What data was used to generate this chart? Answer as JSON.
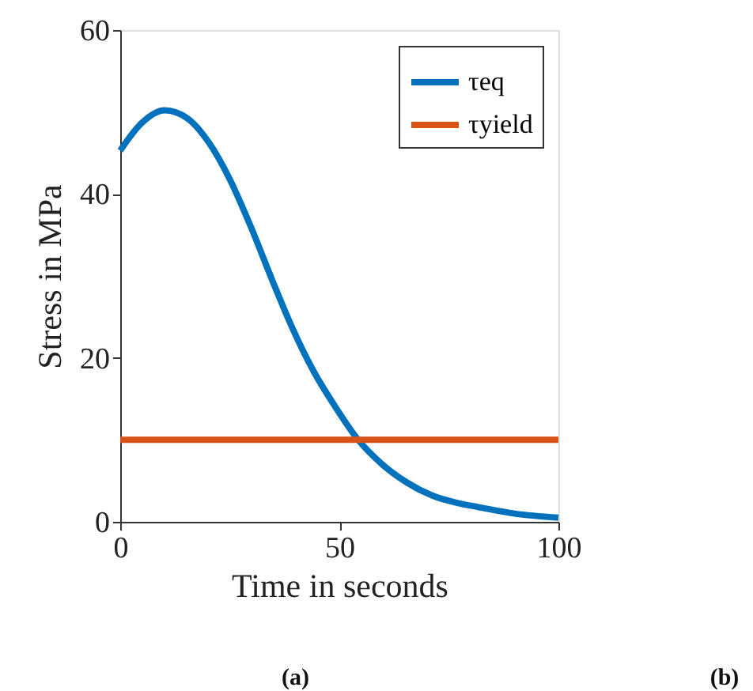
{
  "chart_data": {
    "type": "line",
    "xlabel": "Time in seconds",
    "ylabel": "Stress in MPa",
    "xlim": [
      0,
      100
    ],
    "ylim": [
      0,
      60
    ],
    "xticks": [
      0,
      50,
      100
    ],
    "yticks": [
      0,
      20,
      40,
      60
    ],
    "grid": false,
    "legend": "top right",
    "marker": "none",
    "line_style": "solid",
    "series": [
      {
        "name": "τeq",
        "color": "#0072bd",
        "x": [
          0,
          4.8,
          10.1,
          15.4,
          20.2,
          25,
          29.8,
          34.6,
          39.4,
          44.2,
          49,
          54.3,
          59.6,
          65.4,
          71.2,
          76.9,
          81.7,
          90,
          100
        ],
        "values": [
          45.3,
          48.6,
          50.2,
          49.2,
          46.3,
          41.8,
          36.0,
          29.6,
          23.5,
          18.3,
          14.1,
          10.0,
          7.1,
          4.8,
          3.2,
          2.3,
          1.8,
          1.0,
          0.5
        ]
      },
      {
        "name": "τyield",
        "color": "#d95319",
        "x": [
          0,
          100
        ],
        "values": [
          10,
          10
        ]
      }
    ],
    "annotations": [
      "(a)",
      "(b)"
    ]
  }
}
